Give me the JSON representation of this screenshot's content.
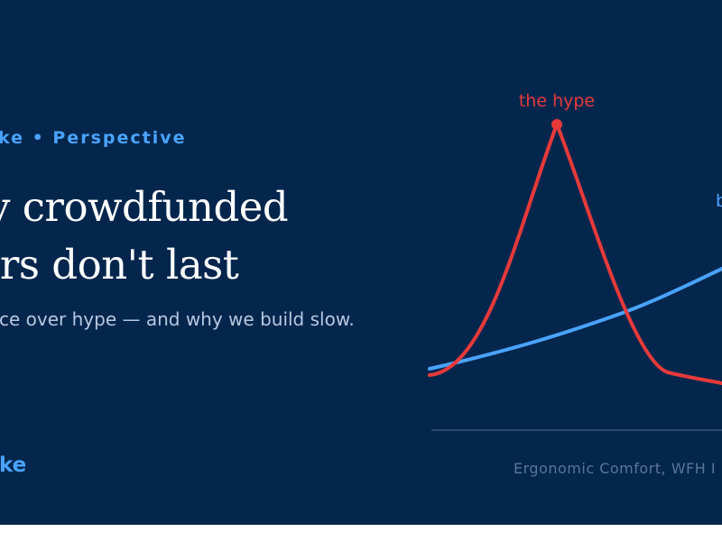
{
  "card": {
    "eyebrow": "ke • Perspective",
    "title_lines": [
      "y crowdfunded",
      "irs don't last"
    ],
    "subtitle": "ce over hype — and why we build slow.",
    "brand": "ke",
    "footer_tag": "Ergonomic Comfort, WFH I"
  },
  "chart": {
    "hype_label": "the hype",
    "other_label": "b",
    "colors": {
      "hype": "#e83a3a",
      "other": "#4aa3ff",
      "axis": "#2e4a70"
    }
  }
}
